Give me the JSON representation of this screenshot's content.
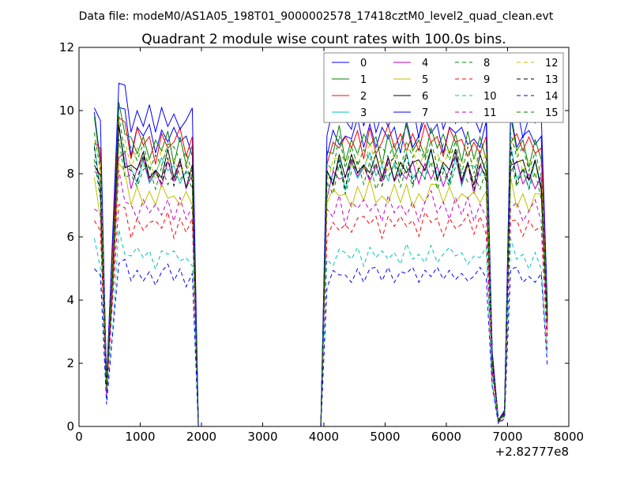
{
  "chart_data": {
    "type": "line",
    "suptitle": "Data file: modeM0/AS1A05_198T01_9000002578_17418cztM0_level2_quad_clean.evt",
    "title": "Quadrant 2 module wise count rates with 100.0s bins.",
    "xlabel": "",
    "ylabel": "",
    "x_offset_label": "+2.82777e8",
    "xlim": [
      0,
      8000
    ],
    "ylim": [
      0,
      12
    ],
    "xticks": [
      "0",
      "1000",
      "2000",
      "3000",
      "4000",
      "5000",
      "6000",
      "7000",
      "8000"
    ],
    "yticks": [
      "0",
      "2",
      "4",
      "6",
      "8",
      "10",
      "12"
    ],
    "grid": false,
    "legend_position": "top-right",
    "legend_columns": 4,
    "series": [
      {
        "name": "0",
        "color": "#0000ff",
        "dashed": false,
        "level": 9.2
      },
      {
        "name": "1",
        "color": "#008000",
        "dashed": false,
        "level": 8.9
      },
      {
        "name": "2",
        "color": "#ff0000",
        "dashed": false,
        "level": 9.0
      },
      {
        "name": "3",
        "color": "#00bfbf",
        "dashed": false,
        "level": 8.1
      },
      {
        "name": "4",
        "color": "#bf00bf",
        "dashed": false,
        "level": 8.0
      },
      {
        "name": "5",
        "color": "#bfbf00",
        "dashed": false,
        "level": 7.3
      },
      {
        "name": "6",
        "color": "#000000",
        "dashed": false,
        "level": 8.2
      },
      {
        "name": "7",
        "color": "#0000ff",
        "dashed": false,
        "level": 9.8
      },
      {
        "name": "8",
        "color": "#008000",
        "dashed": true,
        "level": 8.6
      },
      {
        "name": "9",
        "color": "#ff0000",
        "dashed": true,
        "level": 6.4
      },
      {
        "name": "10",
        "color": "#00bfbf",
        "dashed": true,
        "level": 5.4
      },
      {
        "name": "11",
        "color": "#bf00bf",
        "dashed": true,
        "level": 6.9
      },
      {
        "name": "12",
        "color": "#bfbf00",
        "dashed": true,
        "level": 8.4
      },
      {
        "name": "13",
        "color": "#000000",
        "dashed": true,
        "level": 8.1
      },
      {
        "name": "14",
        "color": "#0000ff",
        "dashed": true,
        "level": 4.8
      },
      {
        "name": "15",
        "color": "#008000",
        "dashed": true,
        "level": 7.9
      }
    ],
    "time_bins": [
      250,
      350,
      450,
      550,
      650,
      750,
      850,
      950,
      1050,
      1150,
      1250,
      1350,
      1450,
      1550,
      1650,
      1750,
      1850,
      1950,
      2050,
      2150,
      2250,
      2350,
      2450,
      2550,
      2650,
      2750,
      2850,
      2950,
      3050,
      3150,
      3250,
      3350,
      3450,
      3550,
      3650,
      3750,
      3850,
      3950,
      4050,
      4150,
      4250,
      4350,
      4450,
      4550,
      4650,
      4750,
      4850,
      4950,
      5050,
      5150,
      5250,
      5350,
      5450,
      5550,
      5650,
      5750,
      5850,
      5950,
      6050,
      6150,
      6250,
      6350,
      6450,
      6550,
      6650,
      6750,
      6850,
      6950,
      7050,
      7150,
      7250,
      7350,
      7450,
      7550,
      7650
    ],
    "shape_factor": [
      1.05,
      0.95,
      0.15,
      0.6,
      1.12,
      1.05,
      0.98,
      1.0,
      1.01,
      0.99,
      0.97,
      1.0,
      1.02,
      0.98,
      1.0,
      0.97,
      0.98,
      0.0,
      0.0,
      0.0,
      0.0,
      0.0,
      0.0,
      0.0,
      0.0,
      0.0,
      0.0,
      0.0,
      0.0,
      0.0,
      0.0,
      0.0,
      0.0,
      0.0,
      0.0,
      0.0,
      0.0,
      0.0,
      0.95,
      0.98,
      1.02,
      0.97,
      1.0,
      1.01,
      0.99,
      1.02,
      1.0,
      0.98,
      1.01,
      1.0,
      0.99,
      1.02,
      1.0,
      0.98,
      1.01,
      1.03,
      1.0,
      0.99,
      1.0,
      1.02,
      0.98,
      1.0,
      0.97,
      1.0,
      1.0,
      0.25,
      0.02,
      0.05,
      1.05,
      1.0,
      0.98,
      0.97,
      0.99,
      0.96,
      0.4
    ],
    "jitter": [
      0.03,
      -0.04,
      0.02,
      0.05,
      -0.02,
      0.04,
      -0.05,
      0.03,
      -0.01,
      0.05,
      -0.03,
      0.02,
      -0.04,
      0.05,
      -0.02,
      0.03,
      -0.05
    ]
  }
}
